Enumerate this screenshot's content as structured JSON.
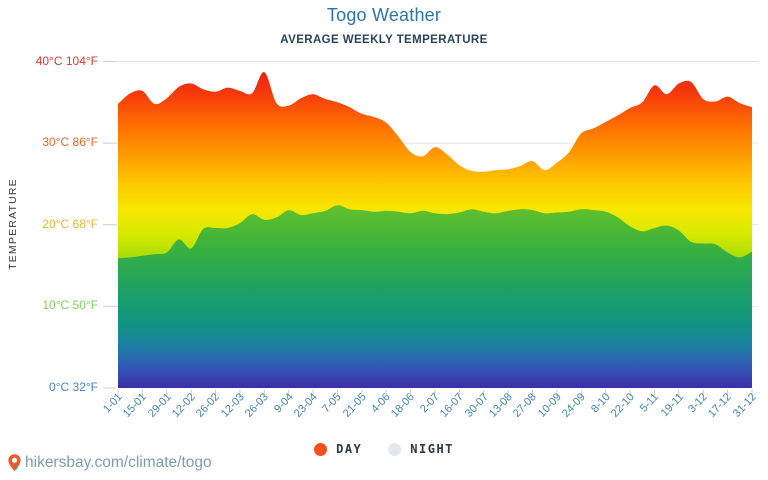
{
  "page": {
    "title": "Togo Weather",
    "subtitle": "AVERAGE WEEKLY TEMPERATURE",
    "footer": {
      "url_text": "hikersbay.com/climate/togo",
      "pin_icon": "location-pin"
    }
  },
  "legend": [
    {
      "label": "DAY",
      "color": "#f4511e"
    },
    {
      "label": "NIGHT",
      "color": "#e2e8ee"
    }
  ],
  "axes": {
    "y_title": "TEMPERATURE",
    "y_ticks": [
      {
        "label": "40°C 104°F",
        "value": 40,
        "color": "#d93b2b"
      },
      {
        "label": "30°C 86°F",
        "value": 30,
        "color": "#ec672c"
      },
      {
        "label": "20°C 68°F",
        "value": 20,
        "color": "#edb32e"
      },
      {
        "label": "10°C 50°F",
        "value": 10,
        "color": "#7ed157"
      },
      {
        "label": "0°C 32°F",
        "value": 0,
        "color": "#3e84d8"
      }
    ]
  },
  "chart_data": {
    "type": "area",
    "title": "Togo Weather",
    "subtitle": "AVERAGE WEEKLY TEMPERATURE",
    "y_unit": "°C",
    "ylim": [
      0,
      40
    ],
    "grid_levels_c": [
      40,
      30,
      20,
      10
    ],
    "x_labels": [
      "1-01",
      "15-01",
      "29-01",
      "12-02",
      "26-02",
      "12-03",
      "26-03",
      "9-04",
      "23-04",
      "7-05",
      "21-05",
      "4-06",
      "18-06",
      "2-07",
      "16-07",
      "30-07",
      "13-08",
      "27-08",
      "10-09",
      "24-09",
      "8-10",
      "22-10",
      "5-11",
      "19-11",
      "3-12",
      "17-12",
      "31-12"
    ],
    "series": [
      {
        "name": "DAY",
        "values": [
          34.8,
          36.1,
          36.4,
          34.8,
          35.5,
          36.9,
          37.3,
          36.6,
          36.3,
          36.8,
          36.4,
          36.1,
          38.7,
          34.9,
          34.6,
          35.5,
          36.0,
          35.4,
          35.0,
          34.4,
          33.6,
          33.2,
          32.5,
          30.8,
          28.9,
          28.4,
          29.5,
          28.6,
          27.3,
          26.6,
          26.5,
          26.7,
          26.8,
          27.2,
          27.8,
          26.7,
          27.6,
          28.9,
          31.2,
          31.8,
          32.6,
          33.4,
          34.3,
          35.0,
          37.1,
          36.0,
          37.3,
          37.5,
          35.4,
          35.1,
          35.7,
          34.9,
          34.4
        ]
      },
      {
        "name": "NIGHT",
        "values": [
          15.9,
          16.0,
          16.2,
          16.4,
          16.6,
          18.2,
          17.1,
          19.5,
          19.6,
          19.6,
          20.2,
          21.3,
          20.6,
          20.9,
          21.8,
          21.2,
          21.4,
          21.7,
          22.4,
          21.9,
          21.8,
          21.6,
          21.7,
          21.6,
          21.4,
          21.7,
          21.4,
          21.3,
          21.5,
          21.9,
          21.6,
          21.4,
          21.7,
          21.9,
          21.8,
          21.4,
          21.5,
          21.6,
          21.9,
          21.8,
          21.6,
          20.9,
          19.8,
          19.2,
          19.6,
          19.9,
          19.3,
          17.9,
          17.7,
          17.6,
          16.6,
          16.0,
          16.7
        ]
      }
    ],
    "day_gradient": [
      [
        40,
        "#e8151e"
      ],
      [
        36,
        "#f63b0b"
      ],
      [
        32,
        "#fe7100"
      ],
      [
        28,
        "#ffa200"
      ],
      [
        25,
        "#fec800"
      ],
      [
        22,
        "#f9e700"
      ],
      [
        19,
        "#d9e900"
      ],
      [
        16,
        "#a8de06"
      ],
      [
        13,
        "#6fd31d"
      ],
      [
        10,
        "#36c338"
      ],
      [
        8,
        "#1fb854"
      ],
      [
        6,
        "#12a977"
      ],
      [
        4,
        "#18919d"
      ],
      [
        2.5,
        "#2a6cc0"
      ],
      [
        0,
        "#3a2fa6"
      ]
    ],
    "night_gradient": [
      [
        23,
        "#68c22b"
      ],
      [
        20,
        "#50ba33"
      ],
      [
        17,
        "#39b040"
      ],
      [
        14,
        "#27a756"
      ],
      [
        11,
        "#199e6d"
      ],
      [
        8,
        "#129481"
      ],
      [
        5,
        "#1b7fa4"
      ],
      [
        2.5,
        "#3457b8"
      ],
      [
        0,
        "#3a2fa6"
      ]
    ],
    "legend_position": "bottom",
    "grid": true
  }
}
